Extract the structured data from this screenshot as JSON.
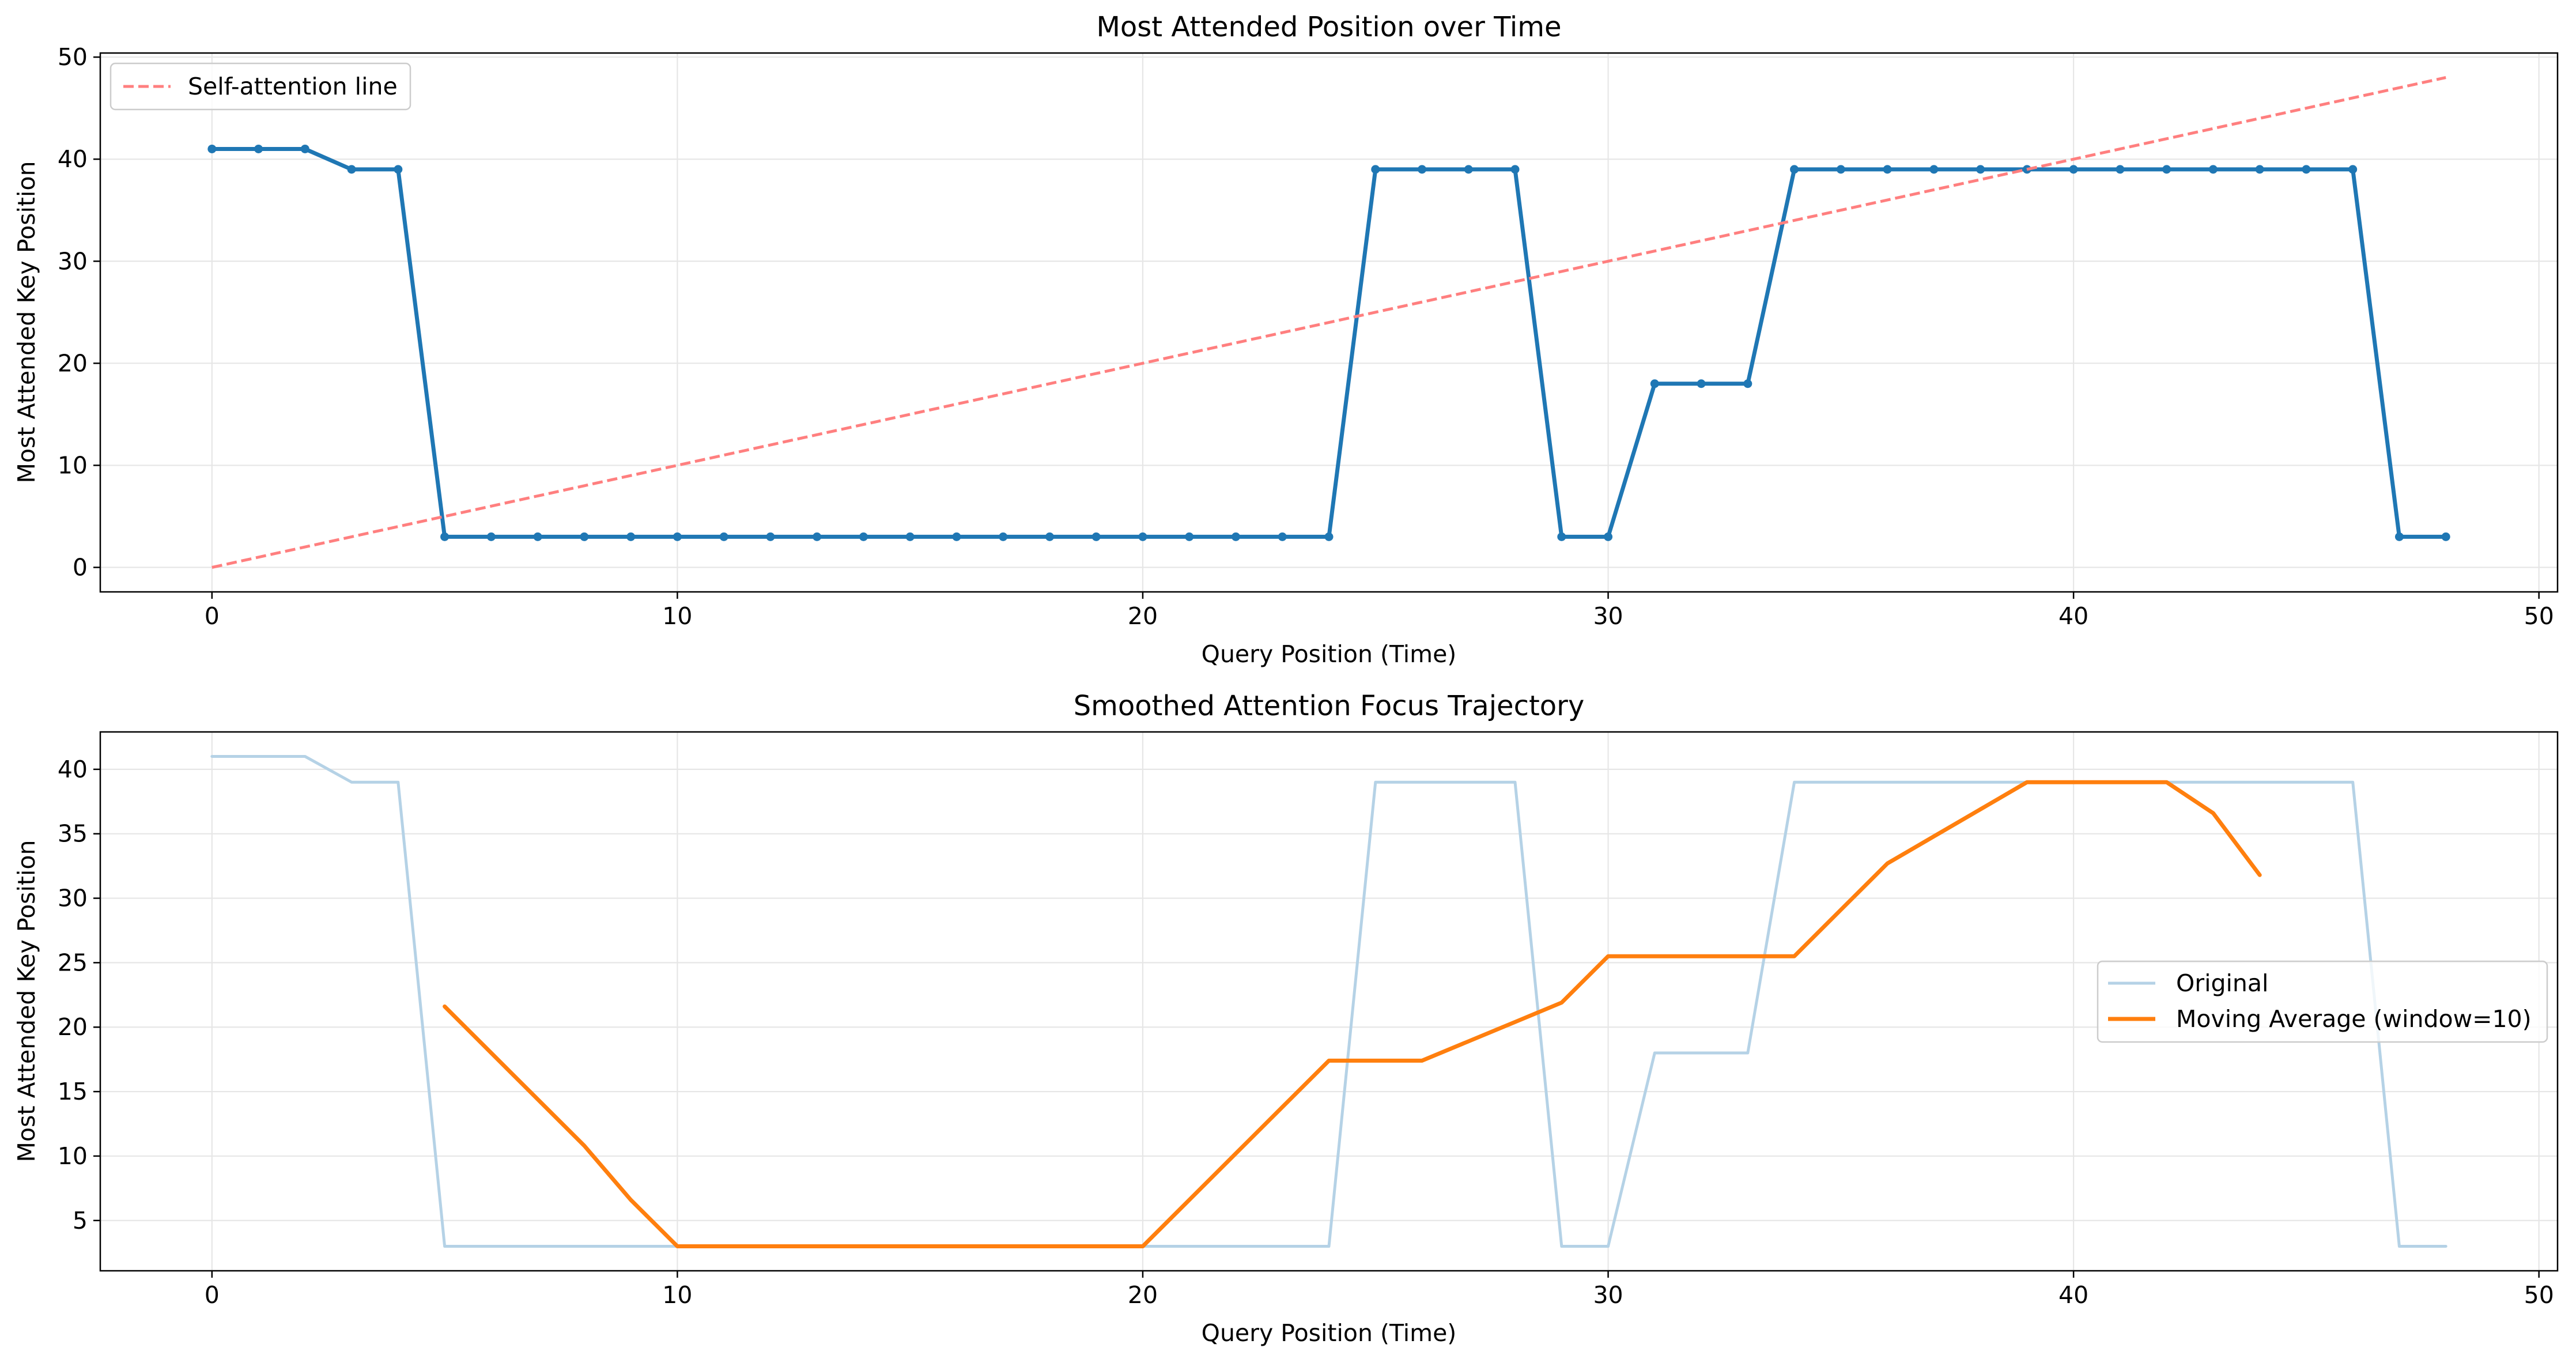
{
  "chart_data": [
    {
      "type": "line",
      "title": "Most Attended Position over Time",
      "xlabel": "Query Position (Time)",
      "ylabel": "Most Attended Key Position",
      "xlim": [
        -2.4,
        50.4
      ],
      "ylim": [
        -2.4,
        50.4
      ],
      "xticks": [
        0,
        10,
        20,
        30,
        40,
        50
      ],
      "yticks": [
        0,
        10,
        20,
        30,
        40,
        50
      ],
      "grid": true,
      "legend_position": "top-left",
      "series": [
        {
          "name": "",
          "color": "#1f77b4",
          "style": "solid-with-markers",
          "x": [
            0,
            1,
            2,
            3,
            4,
            5,
            6,
            7,
            8,
            9,
            10,
            11,
            12,
            13,
            14,
            15,
            16,
            17,
            18,
            19,
            20,
            21,
            22,
            23,
            24,
            25,
            26,
            27,
            28,
            29,
            30,
            31,
            32,
            33,
            34,
            35,
            36,
            37,
            38,
            39,
            40,
            41,
            42,
            43,
            44,
            45,
            46,
            47,
            48
          ],
          "y": [
            41,
            41,
            41,
            39,
            39,
            3,
            3,
            3,
            3,
            3,
            3,
            3,
            3,
            3,
            3,
            3,
            3,
            3,
            3,
            3,
            3,
            3,
            3,
            3,
            3,
            39,
            39,
            39,
            39,
            3,
            3,
            18,
            18,
            18,
            39,
            39,
            39,
            39,
            39,
            39,
            39,
            39,
            39,
            39,
            39,
            39,
            39,
            3,
            3
          ]
        },
        {
          "name": "Self-attention line",
          "color": "#ff7f7f",
          "style": "dashed",
          "x": [
            0,
            48
          ],
          "y": [
            0,
            48
          ]
        }
      ]
    },
    {
      "type": "line",
      "title": "Smoothed Attention Focus Trajectory",
      "xlabel": "Query Position (Time)",
      "ylabel": "Most Attended Key Position",
      "xlim": [
        -2.4,
        50.4
      ],
      "ylim": [
        1.1,
        42.9
      ],
      "xticks": [
        0,
        10,
        20,
        30,
        40,
        50
      ],
      "yticks": [
        5,
        10,
        15,
        20,
        25,
        30,
        35,
        40
      ],
      "grid": true,
      "legend_position": "center-right",
      "series": [
        {
          "name": "Original",
          "color": "#b5d2e6",
          "style": "solid",
          "x": [
            0,
            1,
            2,
            3,
            4,
            5,
            6,
            7,
            8,
            9,
            10,
            11,
            12,
            13,
            14,
            15,
            16,
            17,
            18,
            19,
            20,
            21,
            22,
            23,
            24,
            25,
            26,
            27,
            28,
            29,
            30,
            31,
            32,
            33,
            34,
            35,
            36,
            37,
            38,
            39,
            40,
            41,
            42,
            43,
            44,
            45,
            46,
            47,
            48
          ],
          "y": [
            41,
            41,
            41,
            39,
            39,
            3,
            3,
            3,
            3,
            3,
            3,
            3,
            3,
            3,
            3,
            3,
            3,
            3,
            3,
            3,
            3,
            3,
            3,
            3,
            3,
            39,
            39,
            39,
            39,
            3,
            3,
            18,
            18,
            18,
            39,
            39,
            39,
            39,
            39,
            39,
            39,
            39,
            39,
            39,
            39,
            39,
            39,
            3,
            3
          ]
        },
        {
          "name": "Moving Average (window=10)",
          "color": "#ff7f0e",
          "style": "solid",
          "x": [
            5,
            6,
            7,
            8,
            9,
            10,
            11,
            12,
            13,
            14,
            15,
            16,
            17,
            18,
            19,
            20,
            21,
            22,
            23,
            24,
            25,
            26,
            27,
            28,
            29,
            30,
            31,
            32,
            33,
            34,
            35,
            36,
            37,
            38,
            39,
            40,
            41,
            42,
            43,
            44
          ],
          "y": [
            21.6,
            18.0,
            14.4,
            10.8,
            6.6,
            3.0,
            3.0,
            3.0,
            3.0,
            3.0,
            3.0,
            3.0,
            3.0,
            3.0,
            3.0,
            3.0,
            6.6,
            10.2,
            13.8,
            17.4,
            17.4,
            17.4,
            18.9,
            20.4,
            21.9,
            25.5,
            25.5,
            25.5,
            25.5,
            25.5,
            29.1,
            32.7,
            34.8,
            36.9,
            39.0,
            39.0,
            39.0,
            39.0,
            36.6,
            31.8
          ]
        }
      ]
    }
  ]
}
